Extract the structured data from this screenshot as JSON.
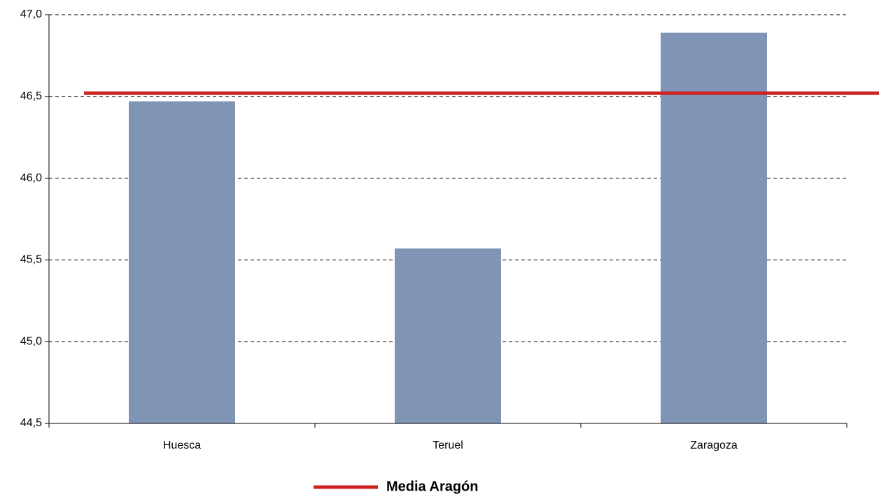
{
  "chart_data": {
    "type": "bar",
    "categories": [
      "Huesca",
      "Teruel",
      "Zaragoza"
    ],
    "values": [
      46.47,
      45.57,
      46.89
    ],
    "color": "#8094b5",
    "reference_line": {
      "name": "Media Aragón",
      "value": 46.52,
      "color": "#cc2222"
    },
    "ylim": [
      44.5,
      47.0
    ],
    "yticks": [
      {
        "value": 44.5,
        "label": "44,5"
      },
      {
        "value": 45.0,
        "label": "45,0"
      },
      {
        "value": 45.5,
        "label": "45,5"
      },
      {
        "value": 46.0,
        "label": "46,0"
      },
      {
        "value": 46.5,
        "label": "46,5"
      },
      {
        "value": 47.0,
        "label": "47,0"
      }
    ],
    "grid": true,
    "legend_position": "bottom"
  }
}
